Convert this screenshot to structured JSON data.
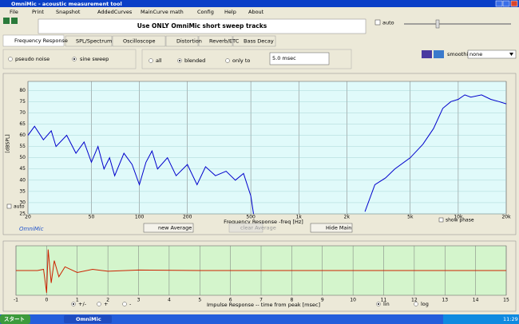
{
  "window": {
    "title": "OmniMic - acoustic measurement tool"
  },
  "menu": [
    "File",
    "Print",
    "Snapshot",
    "AddedCurves",
    "MainCurve math",
    "Config",
    "Help",
    "About"
  ],
  "toolbar": {
    "banner": "Use ONLY OmniMic short sweep tracks",
    "auto": "auto"
  },
  "tabs": [
    "Frequency Response",
    "SPL/Spectrum",
    "Oscilloscope",
    "Distortion",
    "Reverb/ETC",
    "Bass Decay"
  ],
  "options": {
    "signal": [
      "pseudo noise",
      "sine sweep"
    ],
    "window": [
      "all",
      "blended",
      "only to"
    ],
    "window_time": "5.0 msec",
    "smoothing_label": "smoothing",
    "smoothing": "none"
  },
  "chart_data": [
    {
      "type": "line",
      "x_label": "Frequency Response -freq [Hz]",
      "y_label": "[dBSPL]",
      "x": [
        20,
        22,
        25,
        28,
        30,
        35,
        40,
        45,
        50,
        55,
        60,
        65,
        70,
        80,
        90,
        100,
        110,
        120,
        130,
        150,
        170,
        200,
        230,
        260,
        300,
        350,
        400,
        450,
        500,
        520,
        1000,
        2600,
        3000,
        3500,
        4000,
        5000,
        6000,
        7000,
        8000,
        9000,
        10000,
        11000,
        12000,
        14000,
        16000,
        18000,
        20000
      ],
      "series": [
        {
          "color": "#0000cc",
          "values": [
            60,
            64,
            58,
            62,
            55,
            60,
            52,
            57,
            48,
            55,
            45,
            50,
            42,
            52,
            47,
            38,
            48,
            53,
            45,
            50,
            42,
            47,
            38,
            46,
            42,
            44,
            40,
            43,
            33,
            25,
            null,
            26,
            38,
            41,
            45,
            50,
            56,
            63,
            72,
            75,
            76,
            78,
            77,
            78,
            76,
            75,
            74
          ]
        }
      ],
      "xscale": "log",
      "xlim": [
        20,
        20000
      ],
      "xticks": [
        20,
        50,
        100,
        200,
        500,
        {
          "value": 1000,
          "label": "1k"
        },
        {
          "value": 2000,
          "label": "2k"
        },
        {
          "value": 5000,
          "label": "5k"
        },
        {
          "value": 10000,
          "label": "10k"
        },
        {
          "value": 20000,
          "label": "20k"
        }
      ],
      "ylim": [
        25,
        84
      ],
      "yticks": [
        25,
        30,
        35,
        40,
        45,
        50,
        55,
        60,
        65,
        70,
        75,
        80
      ],
      "grid": true,
      "background": "#e0fafa"
    },
    {
      "type": "line",
      "x_label": "Impulse Response  -- time from peak [msec]",
      "x": [
        -1,
        -0.3,
        -0.1,
        0,
        0.05,
        0.15,
        0.25,
        0.4,
        0.6,
        1,
        1.5,
        2,
        3,
        5,
        15
      ],
      "series": [
        {
          "color": "#cc2200",
          "values": [
            0,
            0,
            0.05,
            -0.9,
            0.85,
            -0.5,
            0.4,
            -0.25,
            0.15,
            -0.08,
            0.05,
            -0.03,
            0.02,
            0,
            0
          ]
        }
      ],
      "xlim": [
        -1,
        15
      ],
      "xticks": [
        -1,
        0,
        1,
        2,
        3,
        4,
        5,
        6,
        7,
        8,
        9,
        10,
        11,
        12,
        13,
        14,
        15
      ],
      "ylim": [
        -1,
        1
      ],
      "grid": true,
      "background": "#d4f5cc"
    }
  ],
  "controls": {
    "auto": "auto",
    "brand": "OmniMic",
    "buttons": [
      "new Average",
      "clear Average",
      "Hide Main"
    ],
    "show_phase": "show phase",
    "impulse_modes": [
      "+/-",
      "+",
      "-"
    ],
    "impulse_scales": [
      "lin",
      "log"
    ]
  },
  "taskbar": {
    "start": "スタート",
    "task": "OmniMic",
    "clock": "11:29"
  }
}
